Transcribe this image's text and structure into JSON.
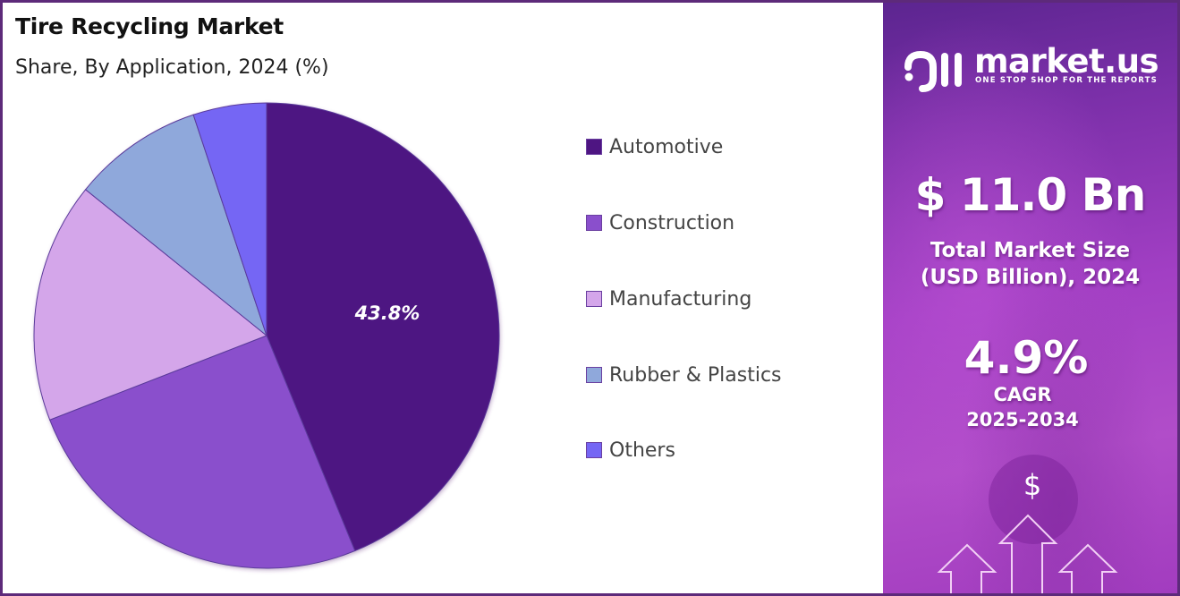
{
  "header": {
    "title": "Tire Recycling Market",
    "subtitle": "Share, By Application, 2024 (%)"
  },
  "legend": {
    "items": [
      {
        "label": "Automotive",
        "color": "#4e1582"
      },
      {
        "label": "Construction",
        "color": "#8a4fcc"
      },
      {
        "label": "Manufacturing",
        "color": "#d4a6ea"
      },
      {
        "label": "Rubber & Plastics",
        "color": "#8fa8db"
      },
      {
        "label": "Others",
        "color": "#7566f4"
      }
    ]
  },
  "pie": {
    "highlight_label": "43.8%"
  },
  "sidebar": {
    "brand": {
      "name": "market.us",
      "tagline": "ONE STOP SHOP FOR THE REPORTS"
    },
    "market_size": {
      "value": "$ 11.0 Bn",
      "label_line1": "Total Market Size",
      "label_line2": "(USD Billion), 2024"
    },
    "cagr": {
      "value": "4.9%",
      "label_line1": "CAGR",
      "label_line2": "2025-2034"
    },
    "decoration_symbol": "$"
  },
  "colors": {
    "frame_border": "#5d2a7a",
    "panel_top": "#5c2590",
    "panel_mid": "#a23fc4"
  },
  "chart_data": {
    "type": "pie",
    "title": "Tire Recycling Market",
    "subtitle": "Share, By Application, 2024 (%)",
    "categories": [
      "Automotive",
      "Construction",
      "Manufacturing",
      "Rubber & Plastics",
      "Others"
    ],
    "values": [
      43.8,
      25.3,
      16.7,
      9.1,
      5.1
    ],
    "colors": [
      "#4e1582",
      "#8a4fcc",
      "#d4a6ea",
      "#8fa8db",
      "#7566f4"
    ],
    "data_labels": {
      "Automotive": "43.8%"
    },
    "start_angle": "12 o'clock, clockwise",
    "legend_position": "right",
    "note": "Only Automotive share is labeled; other values estimated from slice angles"
  }
}
